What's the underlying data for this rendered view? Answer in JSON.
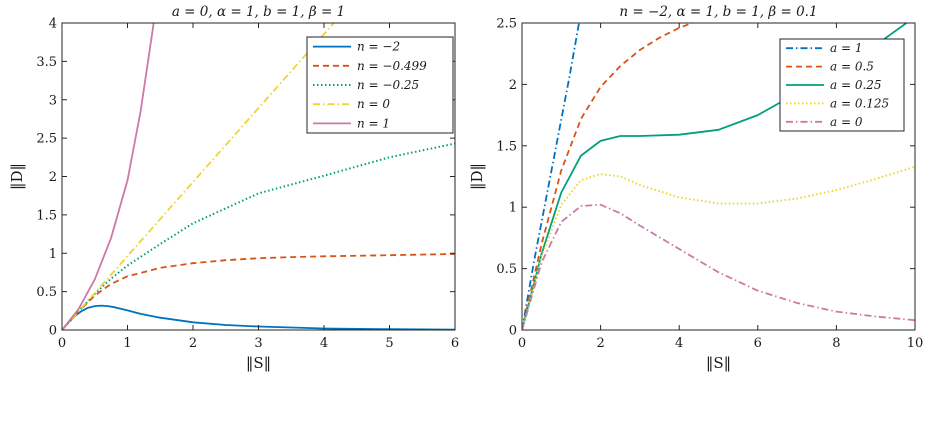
{
  "chart_data": [
    {
      "type": "line",
      "title": "a = 0,  α = 1,  b = 1,  β = 1",
      "xlabel": "‖S‖",
      "ylabel": "‖D‖",
      "xlim": [
        0,
        6
      ],
      "ylim": [
        0,
        4
      ],
      "xticks": [
        "0",
        "1",
        "2",
        "3",
        "4",
        "5",
        "6"
      ],
      "yticks": [
        "0",
        "0.5",
        "1",
        "1.5",
        "2",
        "2.5",
        "3",
        "3.5",
        "4"
      ],
      "grid": false,
      "legend_position": "top-right",
      "series": [
        {
          "name": "n = −2",
          "color": "#0072BD",
          "dash": "solid",
          "x": [
            0,
            0.1,
            0.2,
            0.3,
            0.4,
            0.5,
            0.6,
            0.7,
            0.8,
            1,
            1.2,
            1.5,
            2,
            2.5,
            3,
            4,
            5,
            6
          ],
          "y": [
            0,
            0.099,
            0.185,
            0.248,
            0.29,
            0.312,
            0.318,
            0.312,
            0.297,
            0.255,
            0.21,
            0.16,
            0.1,
            0.065,
            0.045,
            0.02,
            0.01,
            0.005
          ]
        },
        {
          "name": "n = −0.499",
          "color": "#D95319",
          "dash": "dashed",
          "x": [
            0,
            0.25,
            0.5,
            0.75,
            1,
            1.5,
            2,
            2.5,
            3,
            3.5,
            4,
            5,
            6
          ],
          "y": [
            0,
            0.24,
            0.45,
            0.6,
            0.7,
            0.81,
            0.87,
            0.91,
            0.935,
            0.95,
            0.96,
            0.975,
            0.99
          ]
        },
        {
          "name": "n = −0.25",
          "color": "#00A07C",
          "dash": "dotted",
          "x": [
            0,
            0.25,
            0.5,
            0.75,
            1,
            1.5,
            2,
            3,
            4,
            5,
            6
          ],
          "y": [
            0,
            0.24,
            0.47,
            0.67,
            0.84,
            1.12,
            1.39,
            1.78,
            2.01,
            2.25,
            2.43
          ]
        },
        {
          "name": "n = 0",
          "color": "#EDD534",
          "dash": "dashdot",
          "x": [
            0,
            4.15
          ],
          "y": [
            0,
            4
          ]
        },
        {
          "name": "n = 1",
          "color": "#CC79A7",
          "dash": "solid",
          "x": [
            0,
            0.25,
            0.5,
            0.75,
            1,
            1.2,
            1.4
          ],
          "y": [
            0,
            0.27,
            0.66,
            1.2,
            1.95,
            2.85,
            4
          ]
        }
      ]
    },
    {
      "type": "line",
      "title": "n = −2,  α = 1,  b = 1,  β = 0.1",
      "xlabel": "‖S‖",
      "ylabel": "‖D‖",
      "xlim": [
        0,
        10
      ],
      "ylim": [
        0,
        2.5
      ],
      "xticks": [
        "0",
        "2",
        "4",
        "6",
        "8",
        "10"
      ],
      "yticks": [
        "0",
        "0.5",
        "1",
        "1.5",
        "2",
        "2.5"
      ],
      "grid": false,
      "legend_position": "top-right",
      "series": [
        {
          "name": "a = 1",
          "color": "#0072BD",
          "dash": "dashdot",
          "x": [
            0,
            0.3,
            0.6,
            0.9,
            1.2,
            1.45
          ],
          "y": [
            0,
            0.55,
            1.05,
            1.55,
            2.05,
            2.5
          ]
        },
        {
          "name": "a = 0.5",
          "color": "#D95319",
          "dash": "dashed",
          "x": [
            0,
            0.5,
            1,
            1.5,
            2,
            2.5,
            3,
            3.5,
            4,
            4.5
          ],
          "y": [
            0,
            0.7,
            1.3,
            1.72,
            1.98,
            2.15,
            2.28,
            2.38,
            2.46,
            2.52
          ]
        },
        {
          "name": "a = 0.25",
          "color": "#00A07C",
          "dash": "solid",
          "x": [
            0,
            0.5,
            1,
            1.5,
            2,
            2.5,
            3,
            4,
            5,
            6,
            7,
            8,
            9,
            10
          ],
          "y": [
            0,
            0.62,
            1.12,
            1.42,
            1.54,
            1.58,
            1.58,
            1.59,
            1.63,
            1.75,
            1.93,
            2.12,
            2.32,
            2.55
          ]
        },
        {
          "name": "a = 0.125",
          "color": "#EDD534",
          "dash": "dotted",
          "x": [
            0,
            0.5,
            1,
            1.5,
            2,
            2.5,
            3,
            4,
            5,
            6,
            7,
            8,
            9,
            10
          ],
          "y": [
            0,
            0.6,
            1.02,
            1.22,
            1.27,
            1.25,
            1.18,
            1.08,
            1.03,
            1.03,
            1.07,
            1.14,
            1.23,
            1.33
          ]
        },
        {
          "name": "a = 0",
          "color": "#CC79A7",
          "dash": "dashdot",
          "x": [
            0,
            0.5,
            1,
            1.5,
            2,
            2.5,
            3,
            4,
            5,
            6,
            7,
            8,
            9,
            10
          ],
          "y": [
            0,
            0.55,
            0.88,
            1.01,
            1.02,
            0.95,
            0.85,
            0.66,
            0.47,
            0.32,
            0.22,
            0.15,
            0.11,
            0.08
          ]
        }
      ]
    }
  ]
}
